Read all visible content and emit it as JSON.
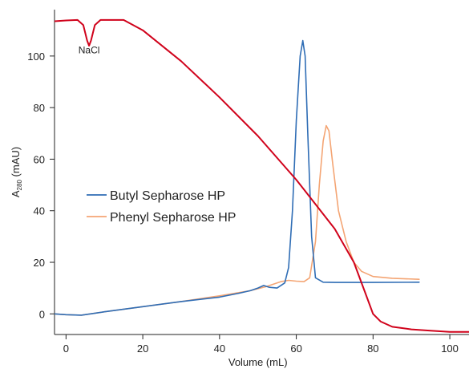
{
  "chart_data": {
    "type": "line",
    "title": "",
    "xlabel": "Volume (mL)",
    "ylabel": {
      "main": "A",
      "sub": "280",
      "unit": " (mAU)"
    },
    "xlim": [
      -3,
      105
    ],
    "ylim": [
      -8,
      118
    ],
    "xticks": [
      0,
      20,
      40,
      60,
      80,
      100
    ],
    "xtick_labels": [
      "0",
      "20",
      "40",
      "60",
      "80",
      "100"
    ],
    "yticks": [
      0,
      20,
      40,
      60,
      80,
      100
    ],
    "ytick_labels": [
      "0",
      "20",
      "40",
      "60",
      "80",
      "100"
    ],
    "grid": false,
    "legend_position": "center-left",
    "annotation": {
      "text": "NaCl",
      "x": 6,
      "y": 101
    },
    "series": [
      {
        "name": "Butyl Sepharose HP",
        "color": "#2f6db5",
        "x": [
          -3,
          0,
          4,
          10,
          20,
          30,
          40,
          45,
          48,
          50,
          51.5,
          53,
          55,
          57,
          58,
          59,
          60,
          61,
          61.7,
          62.3,
          63,
          64,
          65,
          67,
          70,
          80,
          92
        ],
        "y": [
          0,
          -0.3,
          -0.5,
          0.8,
          2.8,
          4.8,
          6.5,
          8,
          9,
          10,
          11,
          10.3,
          10,
          12,
          18,
          40,
          75,
          100,
          106,
          100,
          70,
          30,
          14,
          12.3,
          12.2,
          12.2,
          12.3
        ]
      },
      {
        "name": "Phenyl Sepharose HP",
        "color": "#f4a574",
        "x": [
          -3,
          0,
          4,
          10,
          20,
          30,
          40,
          48,
          52,
          56,
          58,
          60,
          62,
          63.5,
          65,
          66,
          67,
          67.8,
          68.5,
          69.5,
          71,
          73,
          75,
          77,
          80,
          85,
          92
        ],
        "y": [
          0,
          -0.3,
          -0.5,
          0.8,
          2.8,
          4.8,
          7,
          9,
          10.5,
          12.5,
          13,
          12.7,
          12.5,
          14,
          28,
          50,
          67,
          73,
          71,
          58,
          40,
          28,
          20,
          16.5,
          14.5,
          13.8,
          13.4
        ]
      },
      {
        "name": "NaCl",
        "color": "#d0021b",
        "x": [
          -3,
          0,
          3,
          4.5,
          5.5,
          6,
          6.5,
          7.5,
          9,
          15,
          20,
          30,
          40,
          50,
          60,
          70,
          75,
          78,
          80,
          82,
          85,
          90,
          95,
          100,
          105
        ],
        "y": [
          113.5,
          113.8,
          114,
          112,
          106,
          104,
          106,
          112,
          114,
          114,
          110,
          98,
          84,
          69,
          52,
          33,
          20,
          8,
          0,
          -3,
          -5,
          -6,
          -6.5,
          -7,
          -7
        ]
      }
    ],
    "legend": [
      {
        "label": "Butyl Sepharose HP",
        "color": "#2f6db5"
      },
      {
        "label": "Phenyl Sepharose HP",
        "color": "#f4a574"
      }
    ]
  }
}
